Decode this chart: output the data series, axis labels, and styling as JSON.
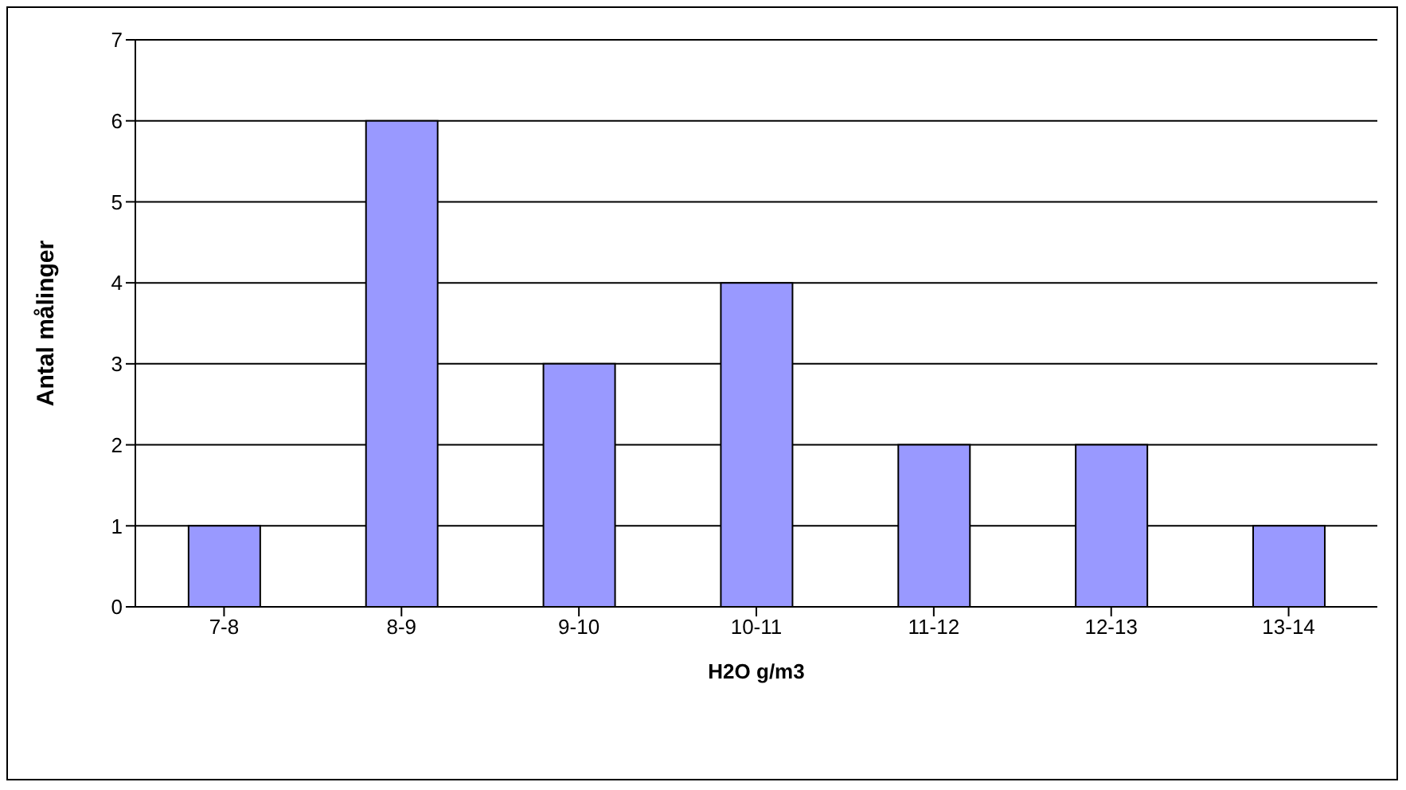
{
  "chart_data": {
    "type": "bar",
    "xlabel": "H2O g/m3",
    "ylabel": "Antal målinger",
    "categories": [
      "7-8",
      "8-9",
      "9-10",
      "10-11",
      "11-12",
      "12-13",
      "13-14"
    ],
    "values": [
      1,
      6,
      3,
      4,
      2,
      2,
      1
    ],
    "color": "#9999ff",
    "ylim": [
      0,
      7
    ],
    "yticks": [
      0,
      1,
      2,
      3,
      4,
      5,
      6,
      7
    ],
    "grid": "y"
  }
}
